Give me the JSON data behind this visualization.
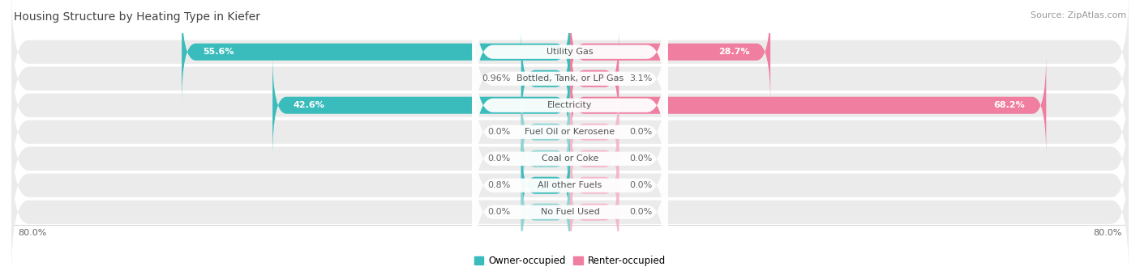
{
  "title": "Housing Structure by Heating Type in Kiefer",
  "source": "Source: ZipAtlas.com",
  "categories": [
    "Utility Gas",
    "Bottled, Tank, or LP Gas",
    "Electricity",
    "Fuel Oil or Kerosene",
    "Coal or Coke",
    "All other Fuels",
    "No Fuel Used"
  ],
  "owner_values": [
    55.6,
    0.96,
    42.6,
    0.0,
    0.0,
    0.8,
    0.0
  ],
  "renter_values": [
    28.7,
    3.1,
    68.2,
    0.0,
    0.0,
    0.0,
    0.0
  ],
  "owner_label_values": [
    "55.6%",
    "0.96%",
    "42.6%",
    "0.0%",
    "0.0%",
    "0.8%",
    "0.0%"
  ],
  "renter_label_values": [
    "28.7%",
    "3.1%",
    "68.2%",
    "0.0%",
    "0.0%",
    "0.0%",
    "0.0%"
  ],
  "owner_color": "#3BBCBC",
  "renter_color": "#F07EA0",
  "owner_color_light": "#92D3D3",
  "renter_color_light": "#F5B8CB",
  "axis_max": 80.0,
  "background_color": "#FFFFFF",
  "row_bg_color": "#EBEBEB",
  "title_fontsize": 10,
  "source_fontsize": 8,
  "value_fontsize": 8,
  "label_fontsize": 8,
  "legend_owner": "Owner-occupied",
  "legend_renter": "Renter-occupied",
  "stub_size": 7.0
}
